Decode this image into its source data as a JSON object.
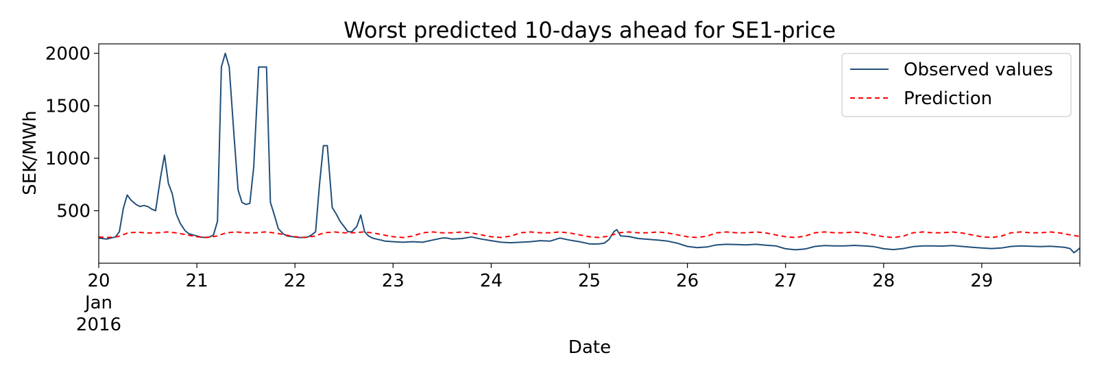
{
  "chart_data": {
    "type": "line",
    "title": "Worst predicted 10-days ahead for SE1-price",
    "xlabel": "Date",
    "ylabel": "SEK/MWh",
    "ylim": [
      0,
      2090
    ],
    "yticks": [
      500,
      1000,
      1500,
      2000
    ],
    "xlim": [
      20,
      30
    ],
    "xticks": [
      {
        "value": 20,
        "lines": [
          "20",
          "Jan",
          "2016"
        ]
      },
      {
        "value": 21,
        "lines": [
          "21"
        ]
      },
      {
        "value": 22,
        "lines": [
          "22"
        ]
      },
      {
        "value": 23,
        "lines": [
          "23"
        ]
      },
      {
        "value": 24,
        "lines": [
          "24"
        ]
      },
      {
        "value": 25,
        "lines": [
          "25"
        ]
      },
      {
        "value": 26,
        "lines": [
          "26"
        ]
      },
      {
        "value": 27,
        "lines": [
          "27"
        ]
      },
      {
        "value": 28,
        "lines": [
          "28"
        ]
      },
      {
        "value": 29,
        "lines": [
          "29"
        ]
      }
    ],
    "grid": false,
    "legend_position": "top-right",
    "series": [
      {
        "name": "Observed values",
        "color": "#1f4e79",
        "style": "solid",
        "points": [
          [
            20.0,
            240
          ],
          [
            20.08,
            230
          ],
          [
            20.17,
            250
          ],
          [
            20.21,
            300
          ],
          [
            20.25,
            520
          ],
          [
            20.29,
            650
          ],
          [
            20.33,
            600
          ],
          [
            20.38,
            560
          ],
          [
            20.42,
            540
          ],
          [
            20.46,
            550
          ],
          [
            20.5,
            540
          ],
          [
            20.54,
            515
          ],
          [
            20.58,
            500
          ],
          [
            20.63,
            820
          ],
          [
            20.67,
            1030
          ],
          [
            20.71,
            760
          ],
          [
            20.75,
            660
          ],
          [
            20.79,
            470
          ],
          [
            20.83,
            380
          ],
          [
            20.88,
            310
          ],
          [
            20.92,
            280
          ],
          [
            20.96,
            270
          ],
          [
            21.0,
            260
          ],
          [
            21.04,
            250
          ],
          [
            21.08,
            245
          ],
          [
            21.13,
            250
          ],
          [
            21.17,
            270
          ],
          [
            21.21,
            400
          ],
          [
            21.25,
            1870
          ],
          [
            21.29,
            2000
          ],
          [
            21.33,
            1870
          ],
          [
            21.38,
            1200
          ],
          [
            21.42,
            700
          ],
          [
            21.46,
            580
          ],
          [
            21.5,
            560
          ],
          [
            21.54,
            570
          ],
          [
            21.58,
            920
          ],
          [
            21.63,
            1870
          ],
          [
            21.67,
            1870
          ],
          [
            21.71,
            1870
          ],
          [
            21.75,
            580
          ],
          [
            21.79,
            460
          ],
          [
            21.83,
            330
          ],
          [
            21.88,
            280
          ],
          [
            21.92,
            260
          ],
          [
            21.96,
            255
          ],
          [
            22.0,
            250
          ],
          [
            22.04,
            245
          ],
          [
            22.08,
            245
          ],
          [
            22.13,
            250
          ],
          [
            22.17,
            270
          ],
          [
            22.21,
            300
          ],
          [
            22.25,
            750
          ],
          [
            22.29,
            1120
          ],
          [
            22.33,
            1120
          ],
          [
            22.38,
            530
          ],
          [
            22.42,
            470
          ],
          [
            22.46,
            400
          ],
          [
            22.5,
            350
          ],
          [
            22.54,
            300
          ],
          [
            22.58,
            300
          ],
          [
            22.63,
            350
          ],
          [
            22.67,
            460
          ],
          [
            22.71,
            300
          ],
          [
            22.75,
            260
          ],
          [
            22.79,
            240
          ],
          [
            22.83,
            230
          ],
          [
            22.88,
            220
          ],
          [
            22.92,
            210
          ],
          [
            23.0,
            205
          ],
          [
            23.1,
            200
          ],
          [
            23.2,
            205
          ],
          [
            23.3,
            200
          ],
          [
            23.4,
            220
          ],
          [
            23.5,
            240
          ],
          [
            23.55,
            240
          ],
          [
            23.6,
            230
          ],
          [
            23.7,
            235
          ],
          [
            23.8,
            250
          ],
          [
            23.9,
            230
          ],
          [
            24.0,
            215
          ],
          [
            24.1,
            200
          ],
          [
            24.2,
            195
          ],
          [
            24.3,
            200
          ],
          [
            24.4,
            205
          ],
          [
            24.5,
            215
          ],
          [
            24.6,
            210
          ],
          [
            24.7,
            240
          ],
          [
            24.8,
            220
          ],
          [
            24.9,
            205
          ],
          [
            25.0,
            185
          ],
          [
            25.05,
            183
          ],
          [
            25.1,
            185
          ],
          [
            25.15,
            190
          ],
          [
            25.2,
            225
          ],
          [
            25.25,
            300
          ],
          [
            25.28,
            320
          ],
          [
            25.32,
            260
          ],
          [
            25.4,
            255
          ],
          [
            25.5,
            235
          ],
          [
            25.6,
            228
          ],
          [
            25.7,
            220
          ],
          [
            25.8,
            210
          ],
          [
            25.9,
            190
          ],
          [
            26.0,
            160
          ],
          [
            26.1,
            148
          ],
          [
            26.2,
            155
          ],
          [
            26.3,
            175
          ],
          [
            26.4,
            180
          ],
          [
            26.5,
            178
          ],
          [
            26.6,
            175
          ],
          [
            26.7,
            180
          ],
          [
            26.8,
            172
          ],
          [
            26.9,
            165
          ],
          [
            27.0,
            138
          ],
          [
            27.1,
            128
          ],
          [
            27.2,
            135
          ],
          [
            27.3,
            160
          ],
          [
            27.4,
            168
          ],
          [
            27.5,
            165
          ],
          [
            27.6,
            165
          ],
          [
            27.7,
            170
          ],
          [
            27.8,
            165
          ],
          [
            27.9,
            158
          ],
          [
            28.0,
            138
          ],
          [
            28.1,
            130
          ],
          [
            28.2,
            140
          ],
          [
            28.3,
            158
          ],
          [
            28.4,
            165
          ],
          [
            28.5,
            165
          ],
          [
            28.6,
            163
          ],
          [
            28.7,
            168
          ],
          [
            28.8,
            160
          ],
          [
            28.9,
            152
          ],
          [
            29.0,
            145
          ],
          [
            29.1,
            140
          ],
          [
            29.2,
            145
          ],
          [
            29.3,
            160
          ],
          [
            29.4,
            165
          ],
          [
            29.5,
            162
          ],
          [
            29.6,
            158
          ],
          [
            29.7,
            162
          ],
          [
            29.8,
            155
          ],
          [
            29.85,
            150
          ],
          [
            29.9,
            140
          ],
          [
            29.94,
            100
          ],
          [
            29.97,
            120
          ],
          [
            30.0,
            145
          ]
        ]
      },
      {
        "name": "Prediction",
        "color": "#ff0000",
        "style": "dashed",
        "points": [
          [
            20.0,
            250
          ],
          [
            20.1,
            245
          ],
          [
            20.2,
            255
          ],
          [
            20.3,
            290
          ],
          [
            20.4,
            295
          ],
          [
            20.5,
            288
          ],
          [
            20.6,
            290
          ],
          [
            20.7,
            298
          ],
          [
            20.8,
            288
          ],
          [
            20.9,
            270
          ],
          [
            21.0,
            252
          ],
          [
            21.1,
            245
          ],
          [
            21.2,
            258
          ],
          [
            21.3,
            290
          ],
          [
            21.4,
            298
          ],
          [
            21.5,
            290
          ],
          [
            21.6,
            290
          ],
          [
            21.7,
            298
          ],
          [
            21.8,
            288
          ],
          [
            21.9,
            270
          ],
          [
            22.0,
            252
          ],
          [
            22.1,
            245
          ],
          [
            22.2,
            258
          ],
          [
            22.3,
            290
          ],
          [
            22.4,
            298
          ],
          [
            22.5,
            290
          ],
          [
            22.6,
            290
          ],
          [
            22.7,
            298
          ],
          [
            22.8,
            288
          ],
          [
            22.9,
            270
          ],
          [
            23.0,
            252
          ],
          [
            23.1,
            245
          ],
          [
            23.2,
            258
          ],
          [
            23.3,
            290
          ],
          [
            23.4,
            298
          ],
          [
            23.5,
            290
          ],
          [
            23.6,
            290
          ],
          [
            23.7,
            298
          ],
          [
            23.8,
            288
          ],
          [
            23.9,
            270
          ],
          [
            24.0,
            252
          ],
          [
            24.1,
            245
          ],
          [
            24.2,
            258
          ],
          [
            24.3,
            290
          ],
          [
            24.4,
            298
          ],
          [
            24.5,
            290
          ],
          [
            24.6,
            290
          ],
          [
            24.7,
            298
          ],
          [
            24.8,
            288
          ],
          [
            24.9,
            270
          ],
          [
            25.0,
            252
          ],
          [
            25.1,
            245
          ],
          [
            25.2,
            258
          ],
          [
            25.3,
            290
          ],
          [
            25.4,
            298
          ],
          [
            25.5,
            290
          ],
          [
            25.6,
            290
          ],
          [
            25.7,
            298
          ],
          [
            25.8,
            288
          ],
          [
            25.9,
            270
          ],
          [
            26.0,
            252
          ],
          [
            26.1,
            245
          ],
          [
            26.2,
            258
          ],
          [
            26.3,
            290
          ],
          [
            26.4,
            298
          ],
          [
            26.5,
            290
          ],
          [
            26.6,
            290
          ],
          [
            26.7,
            298
          ],
          [
            26.8,
            288
          ],
          [
            26.9,
            270
          ],
          [
            27.0,
            252
          ],
          [
            27.1,
            245
          ],
          [
            27.2,
            258
          ],
          [
            27.3,
            290
          ],
          [
            27.4,
            298
          ],
          [
            27.5,
            290
          ],
          [
            27.6,
            290
          ],
          [
            27.7,
            298
          ],
          [
            27.8,
            288
          ],
          [
            27.9,
            270
          ],
          [
            28.0,
            252
          ],
          [
            28.1,
            245
          ],
          [
            28.2,
            258
          ],
          [
            28.3,
            290
          ],
          [
            28.4,
            298
          ],
          [
            28.5,
            290
          ],
          [
            28.6,
            290
          ],
          [
            28.7,
            298
          ],
          [
            28.8,
            288
          ],
          [
            28.9,
            270
          ],
          [
            29.0,
            252
          ],
          [
            29.1,
            245
          ],
          [
            29.2,
            258
          ],
          [
            29.3,
            290
          ],
          [
            29.4,
            298
          ],
          [
            29.5,
            290
          ],
          [
            29.6,
            290
          ],
          [
            29.7,
            298
          ],
          [
            29.8,
            288
          ],
          [
            29.9,
            270
          ],
          [
            30.0,
            255
          ]
        ]
      }
    ]
  }
}
